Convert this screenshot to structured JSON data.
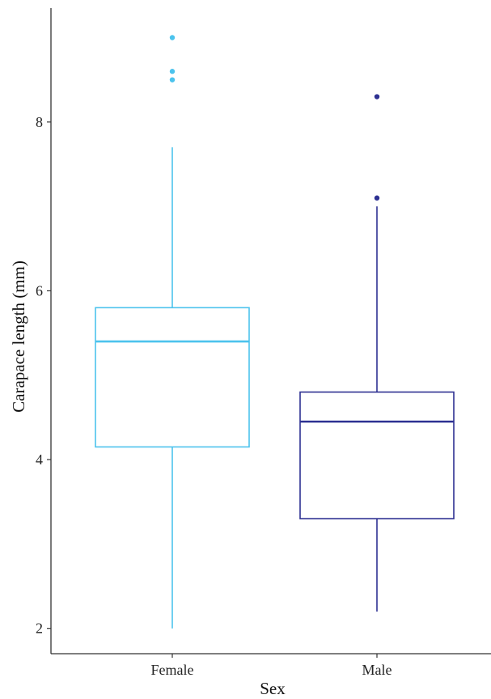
{
  "chart_data": {
    "type": "boxplot",
    "xlabel": "Sex",
    "ylabel": "Carapace length (mm)",
    "categories": [
      "Female",
      "Male"
    ],
    "ylim": [
      1.7,
      9.35
    ],
    "yticks": [
      2,
      4,
      6,
      8
    ],
    "ytick_labels": [
      "2",
      "4",
      "6",
      "8"
    ],
    "grid": false,
    "legend": "none",
    "series": [
      {
        "category": "Female",
        "color": "#4cc3ed",
        "whisker_low": 2.0,
        "q1": 4.15,
        "median": 5.4,
        "q3": 5.8,
        "whisker_high": 7.7,
        "outliers": [
          8.5,
          8.6,
          9.0
        ]
      },
      {
        "category": "Male",
        "color": "#2e3192",
        "whisker_low": 2.2,
        "q1": 3.3,
        "median": 4.45,
        "q3": 4.8,
        "whisker_high": 7.0,
        "outliers": [
          7.1,
          8.3
        ]
      }
    ]
  }
}
